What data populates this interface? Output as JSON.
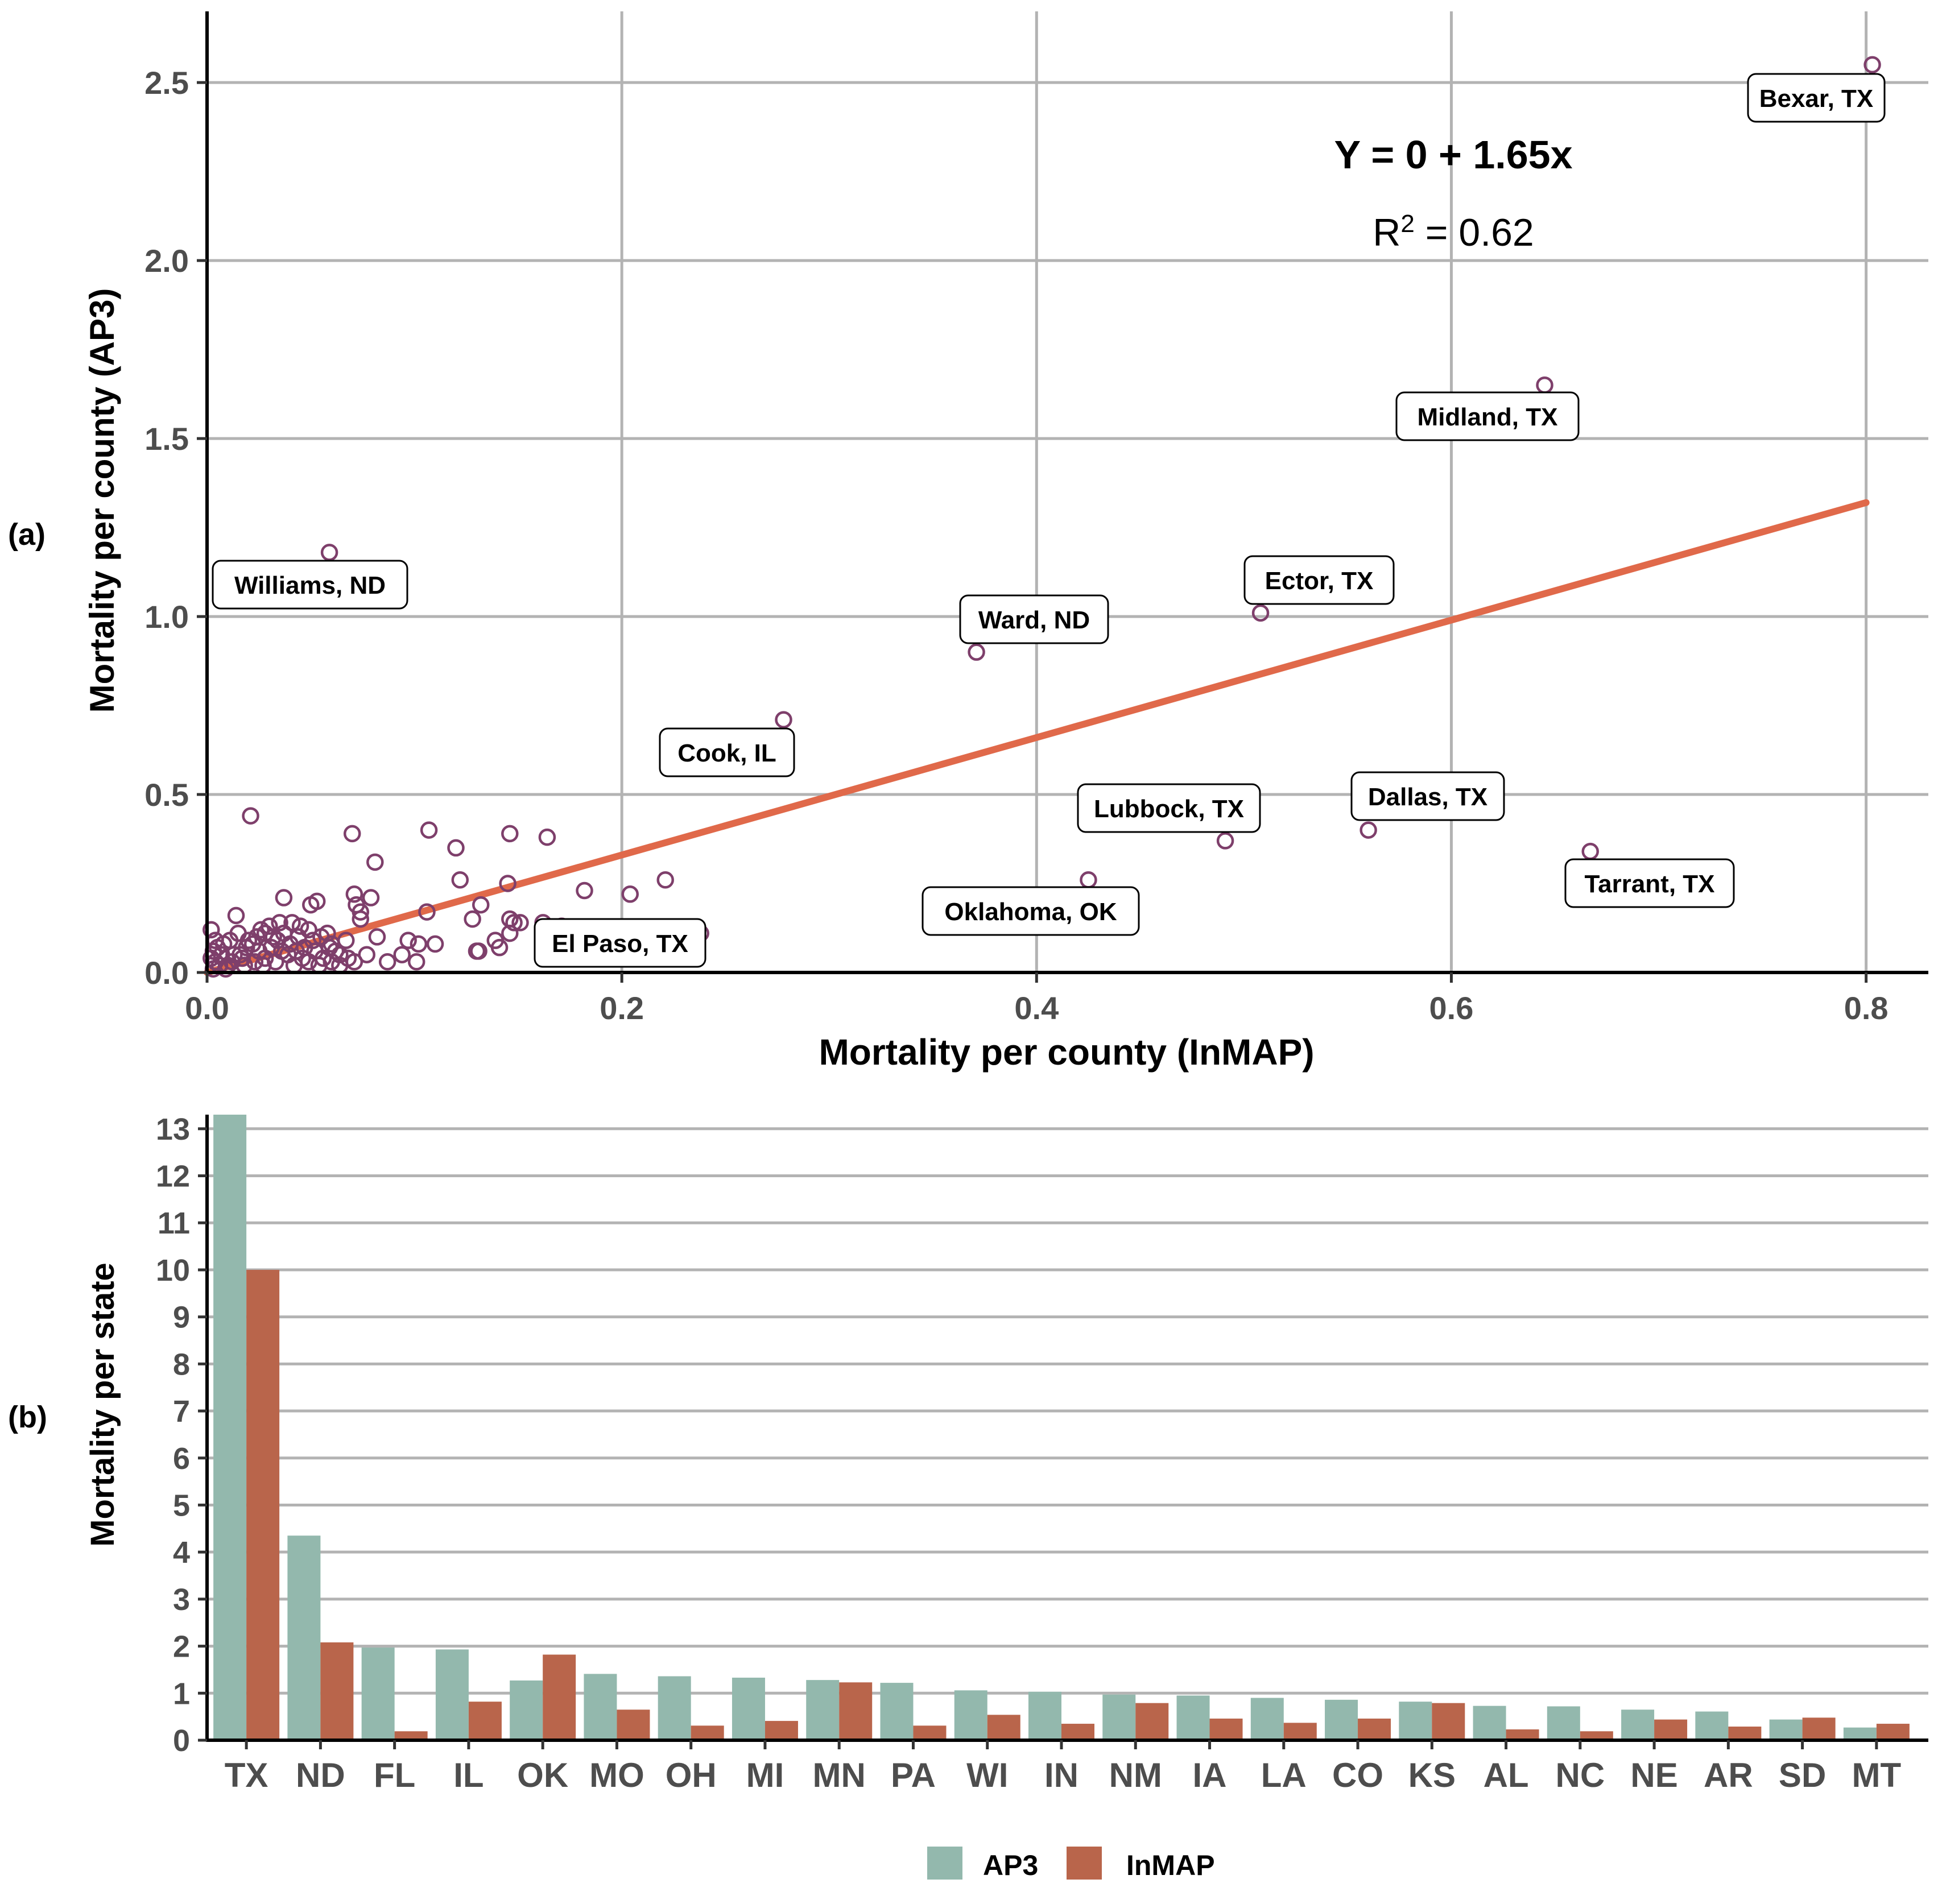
{
  "colors": {
    "point": "#7e3f6b",
    "fit_line": "#e0694a",
    "ap3": "#93b8ad",
    "inmap": "#b9654b",
    "grid": "#b3b3b3",
    "callout_border": "#000000"
  },
  "chart_data": [
    {
      "id": "a",
      "type": "scatter",
      "panel_label": "(a)",
      "xlabel": "Mortality per county (InMAP)",
      "ylabel": "Mortality per county (AP3)",
      "xlim": [
        0,
        0.83
      ],
      "ylim": [
        0,
        2.7
      ],
      "x_ticks": [
        0,
        0.2,
        0.4,
        0.6,
        0.8
      ],
      "x_tick_labels": [
        "0.0",
        "0.2",
        "0.4",
        "0.6",
        "0.8"
      ],
      "y_ticks": [
        0,
        0.5,
        1.0,
        1.5,
        2.0,
        2.5
      ],
      "y_tick_labels": [
        "0.0",
        "0.5",
        "1.0",
        "1.5",
        "2.0",
        "2.5"
      ],
      "fit": {
        "intercept": 0,
        "slope": 1.65,
        "x_range": [
          0,
          0.8
        ],
        "equation": "Y = 0 + 1.65x",
        "r2_prefix": "R",
        "r2_sup": "2",
        "r2_value": " = 0.62"
      },
      "labeled_points": [
        {
          "name": "Bexar, TX",
          "x": 0.803,
          "y": 2.55
        },
        {
          "name": "Midland, TX",
          "x": 0.645,
          "y": 1.65
        },
        {
          "name": "Williams, ND",
          "x": 0.059,
          "y": 1.18
        },
        {
          "name": "Ector, TX",
          "x": 0.508,
          "y": 1.01
        },
        {
          "name": "Ward, ND",
          "x": 0.371,
          "y": 0.9
        },
        {
          "name": "Cook, IL",
          "x": 0.278,
          "y": 0.71
        },
        {
          "name": "Dallas, TX",
          "x": 0.56,
          "y": 0.4
        },
        {
          "name": "Lubbock, TX",
          "x": 0.491,
          "y": 0.37
        },
        {
          "name": "Tarrant, TX",
          "x": 0.667,
          "y": 0.34
        },
        {
          "name": "Oklahoma, OK",
          "x": 0.425,
          "y": 0.26
        },
        {
          "name": "El Paso, TX",
          "x": 0.148,
          "y": 0.14
        }
      ],
      "points": [
        [
          0.021,
          0.44
        ],
        [
          0.07,
          0.39
        ],
        [
          0.107,
          0.4
        ],
        [
          0.146,
          0.39
        ],
        [
          0.164,
          0.38
        ],
        [
          0.081,
          0.31
        ],
        [
          0.12,
          0.35
        ],
        [
          0.221,
          0.26
        ],
        [
          0.122,
          0.26
        ],
        [
          0.204,
          0.22
        ],
        [
          0.182,
          0.23
        ],
        [
          0.145,
          0.25
        ],
        [
          0.132,
          0.19
        ],
        [
          0.106,
          0.17
        ],
        [
          0.071,
          0.22
        ],
        [
          0.079,
          0.21
        ],
        [
          0.053,
          0.2
        ],
        [
          0.05,
          0.19
        ],
        [
          0.037,
          0.21
        ],
        [
          0.072,
          0.19
        ],
        [
          0.074,
          0.17
        ],
        [
          0.074,
          0.15
        ],
        [
          0.082,
          0.1
        ],
        [
          0.097,
          0.09
        ],
        [
          0.102,
          0.08
        ],
        [
          0.11,
          0.08
        ],
        [
          0.128,
          0.15
        ],
        [
          0.146,
          0.15
        ],
        [
          0.151,
          0.14
        ],
        [
          0.162,
          0.14
        ],
        [
          0.171,
          0.13
        ],
        [
          0.238,
          0.11
        ],
        [
          0.146,
          0.11
        ],
        [
          0.139,
          0.09
        ],
        [
          0.131,
          0.06
        ],
        [
          0.141,
          0.07
        ],
        [
          0.13,
          0.06
        ],
        [
          0.101,
          0.03
        ],
        [
          0.094,
          0.05
        ],
        [
          0.087,
          0.03
        ],
        [
          0.077,
          0.05
        ],
        [
          0.071,
          0.03
        ],
        [
          0.064,
          0.05
        ],
        [
          0.06,
          0.08
        ],
        [
          0.059,
          0.07
        ],
        [
          0.055,
          0.1
        ],
        [
          0.049,
          0.12
        ],
        [
          0.045,
          0.13
        ],
        [
          0.041,
          0.14
        ],
        [
          0.035,
          0.14
        ],
        [
          0.03,
          0.13
        ],
        [
          0.028,
          0.11
        ],
        [
          0.024,
          0.1
        ],
        [
          0.015,
          0.11
        ],
        [
          0.014,
          0.16
        ],
        [
          0.011,
          0.09
        ],
        [
          0.008,
          0.08
        ],
        [
          0.005,
          0.07
        ],
        [
          0.003,
          0.06
        ],
        [
          0.002,
          0.12
        ],
        [
          0.002,
          0.04
        ],
        [
          0.004,
          0.03
        ],
        [
          0.006,
          0.02
        ],
        [
          0.009,
          0.01
        ],
        [
          0.012,
          0.03
        ],
        [
          0.016,
          0.05
        ],
        [
          0.019,
          0.07
        ],
        [
          0.022,
          0.08
        ],
        [
          0.025,
          0.06
        ],
        [
          0.028,
          0.04
        ],
        [
          0.031,
          0.07
        ],
        [
          0.034,
          0.09
        ],
        [
          0.037,
          0.11
        ],
        [
          0.04,
          0.08
        ],
        [
          0.043,
          0.06
        ],
        [
          0.046,
          0.04
        ],
        [
          0.049,
          0.03
        ],
        [
          0.052,
          0.06
        ],
        [
          0.056,
          0.04
        ],
        [
          0.06,
          0.03
        ],
        [
          0.064,
          0.02
        ],
        [
          0.068,
          0.04
        ],
        [
          0.033,
          0.03
        ],
        [
          0.027,
          0.02
        ],
        [
          0.018,
          0.02
        ],
        [
          0.013,
          0.05
        ],
        [
          0.01,
          0.02
        ],
        [
          0.007,
          0.05
        ],
        [
          0.004,
          0.09
        ],
        [
          0.003,
          0.01
        ],
        [
          0.039,
          0.05
        ],
        [
          0.044,
          0.1
        ],
        [
          0.051,
          0.09
        ],
        [
          0.058,
          0.11
        ],
        [
          0.062,
          0.06
        ],
        [
          0.067,
          0.09
        ],
        [
          0.02,
          0.09
        ],
        [
          0.026,
          0.12
        ],
        [
          0.032,
          0.1
        ],
        [
          0.036,
          0.06
        ],
        [
          0.042,
          0.02
        ],
        [
          0.047,
          0.07
        ],
        [
          0.054,
          0.02
        ],
        [
          0.017,
          0.04
        ],
        [
          0.023,
          0.03
        ]
      ]
    },
    {
      "id": "b",
      "type": "bar",
      "panel_label": "(b)",
      "xlabel": "",
      "ylabel": "Mortality per state",
      "ylim": [
        0,
        13.3
      ],
      "y_ticks": [
        0,
        1,
        2,
        3,
        4,
        5,
        6,
        7,
        8,
        9,
        10,
        11,
        12,
        13
      ],
      "categories": [
        "TX",
        "ND",
        "FL",
        "IL",
        "OK",
        "MO",
        "OH",
        "MI",
        "MN",
        "PA",
        "WI",
        "IN",
        "NM",
        "IA",
        "LA",
        "CO",
        "KS",
        "AL",
        "NC",
        "NE",
        "AR",
        "SD",
        "MT"
      ],
      "series": [
        {
          "name": "AP3",
          "values": [
            13.3,
            4.35,
            1.97,
            1.93,
            1.27,
            1.41,
            1.36,
            1.33,
            1.28,
            1.22,
            1.06,
            1.03,
            0.97,
            0.95,
            0.9,
            0.86,
            0.82,
            0.73,
            0.72,
            0.65,
            0.61,
            0.44,
            0.27
          ]
        },
        {
          "name": "InMAP",
          "values": [
            10.0,
            2.08,
            0.19,
            0.82,
            1.82,
            0.65,
            0.31,
            0.41,
            1.23,
            0.31,
            0.54,
            0.35,
            0.79,
            0.46,
            0.37,
            0.46,
            0.79,
            0.23,
            0.19,
            0.44,
            0.29,
            0.48,
            0.35
          ]
        }
      ],
      "legend": {
        "position": "bottom",
        "labels": [
          "AP3",
          "InMAP"
        ]
      }
    }
  ]
}
